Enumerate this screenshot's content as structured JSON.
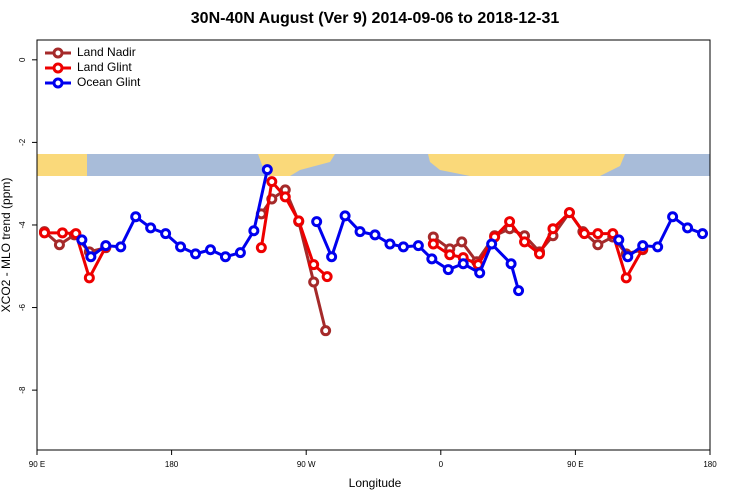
{
  "chart_data": {
    "type": "line",
    "title": "30N-40N August (Ver 9)   2014-09-06 to 2018-12-31",
    "x_label": "Longitude",
    "y_label": "XCO2 - MLO trend (ppm)",
    "xlim": [
      90,
      540
    ],
    "ylim": [
      -9.45,
      0.48
    ],
    "xticks": [
      {
        "value": 90,
        "label": "90 E"
      },
      {
        "value": 180,
        "label": "180"
      },
      {
        "value": 270,
        "label": "90 W"
      },
      {
        "value": 360,
        "label": "0"
      },
      {
        "value": 450,
        "label": "90 E"
      },
      {
        "value": 540,
        "label": "180"
      }
    ],
    "yticks": [
      0,
      -2,
      -4,
      -6,
      -8
    ],
    "legend": "top-left",
    "series": [
      {
        "name": "Land Nadir",
        "color": "#a52a2a",
        "x": [
          95,
          105,
          115,
          125,
          136,
          null,
          240,
          247,
          256,
          265,
          275,
          283,
          null,
          355,
          366,
          374,
          384,
          396,
          406,
          416,
          426,
          435,
          446,
          455,
          465,
          475,
          484,
          495
        ],
        "values": [
          -4.16,
          -4.48,
          -4.24,
          -4.65,
          -4.55,
          null,
          -3.73,
          -3.37,
          -3.15,
          -3.92,
          -5.38,
          -6.56,
          null,
          -4.29,
          -4.58,
          -4.41,
          -4.89,
          -4.26,
          -4.09,
          -4.26,
          -4.65,
          -4.26,
          -3.7,
          -4.16,
          -4.48,
          -4.29,
          -4.7,
          -4.6
        ]
      },
      {
        "name": "Land Glint",
        "color": "#ee0000",
        "x": [
          95,
          107,
          116,
          125,
          136,
          null,
          240,
          247,
          256,
          265,
          275,
          284,
          null,
          355,
          366,
          375,
          385,
          396,
          406,
          416,
          426,
          435,
          446,
          456,
          465,
          475,
          484,
          495
        ],
        "values": [
          -4.19,
          -4.19,
          -4.21,
          -5.28,
          -4.53,
          null,
          -4.55,
          -2.95,
          -3.32,
          -3.9,
          -4.96,
          -5.25,
          null,
          -4.46,
          -4.72,
          -4.79,
          -4.96,
          -4.29,
          -3.92,
          -4.41,
          -4.7,
          -4.09,
          -3.7,
          -4.21,
          -4.21,
          -4.21,
          -5.28,
          -4.58
        ]
      },
      {
        "name": "Ocean Glint",
        "color": "#0000ee",
        "x": [
          120,
          126,
          136,
          146,
          156,
          166,
          176,
          186,
          196,
          206,
          216,
          226,
          235,
          244,
          null,
          277,
          287,
          296,
          306,
          316,
          326,
          335,
          345,
          354,
          365,
          375,
          386,
          394,
          407,
          412,
          null,
          479,
          485,
          495,
          505,
          515,
          525,
          535
        ],
        "values": [
          -4.36,
          -4.77,
          -4.5,
          -4.53,
          -3.8,
          -4.07,
          -4.21,
          -4.53,
          -4.7,
          -4.6,
          -4.77,
          -4.67,
          -4.14,
          -2.66,
          null,
          -3.92,
          -4.77,
          -3.78,
          -4.16,
          -4.24,
          -4.46,
          -4.53,
          -4.5,
          -4.82,
          -5.08,
          -4.94,
          -5.16,
          -4.46,
          -4.94,
          -5.59,
          null,
          -4.36,
          -4.77,
          -4.5,
          -4.53,
          -3.8,
          -4.07,
          -4.21
        ]
      }
    ]
  }
}
